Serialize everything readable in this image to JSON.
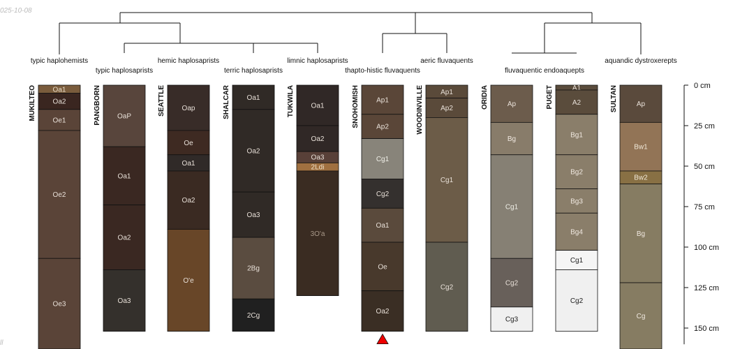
{
  "corner_text": {
    "top_left": "025-10-08",
    "bottom_left": "ll"
  },
  "depth_axis": {
    "unit": "cm",
    "max_depth": 150,
    "ticks": [
      {
        "depth": 0,
        "label": "0 cm"
      },
      {
        "depth": 25,
        "label": "25 cm"
      },
      {
        "depth": 50,
        "label": "50 cm"
      },
      {
        "depth": 75,
        "label": "75 cm"
      },
      {
        "depth": 100,
        "label": "100 cm"
      },
      {
        "depth": 125,
        "label": "125 cm"
      },
      {
        "depth": 150,
        "label": "150 cm"
      }
    ]
  },
  "subgroup_labels": [
    "typic haplohemists",
    "typic haplosaprists",
    "hemic haplosaprists",
    "terric haplosaprists",
    "limnic haplosaprists",
    "thapto-histic fluvaquents",
    "aeric fluvaquents",
    "fluvaquentic endoaquepts",
    "aquandic dystroxerepts"
  ],
  "profiles": [
    {
      "name": "MUKILTEO",
      "horizons": [
        {
          "name": "Oa1",
          "top": 0,
          "bottom": 5,
          "color": "#7a5c3c",
          "text": "#e8dcc8"
        },
        {
          "name": "Oa2",
          "top": 5,
          "bottom": 15,
          "color": "#3a2620",
          "text": "#e8e0d8"
        },
        {
          "name": "Oe1",
          "top": 15,
          "bottom": 28,
          "color": "#5a4438",
          "text": "#e8e0d8"
        },
        {
          "name": "Oe2",
          "top": 28,
          "bottom": 107,
          "color": "#5a4438",
          "text": "#e8e0d8"
        },
        {
          "name": "Oe3",
          "top": 107,
          "bottom": 165,
          "color": "#5a4438",
          "text": "#e8e0d8"
        }
      ]
    },
    {
      "name": "PANGBORN",
      "horizons": [
        {
          "name": "OaP",
          "top": 0,
          "bottom": 38,
          "color": "#58453c",
          "text": "#e8e0d8"
        },
        {
          "name": "Oa1",
          "top": 38,
          "bottom": 74,
          "color": "#3a2822",
          "text": "#e8e0d8"
        },
        {
          "name": "Oa2",
          "top": 74,
          "bottom": 114,
          "color": "#3a2822",
          "text": "#e8e0d8"
        },
        {
          "name": "Oa3",
          "top": 114,
          "bottom": 152,
          "color": "#34302c",
          "text": "#e8e0d8"
        }
      ]
    },
    {
      "name": "SEATTLE",
      "horizons": [
        {
          "name": "Oap",
          "top": 0,
          "bottom": 28,
          "color": "#382c28",
          "text": "#e8e0d8"
        },
        {
          "name": "Oe",
          "top": 28,
          "bottom": 43,
          "color": "#3e2a22",
          "text": "#e8e0d8"
        },
        {
          "name": "Oa1",
          "top": 43,
          "bottom": 53,
          "color": "#302a28",
          "text": "#e8e0d8"
        },
        {
          "name": "Oa2",
          "top": 53,
          "bottom": 89,
          "color": "#3a2a22",
          "text": "#e8e0d8"
        },
        {
          "name": "O'e",
          "top": 89,
          "bottom": 152,
          "color": "#684628",
          "text": "#e8e0d8"
        }
      ]
    },
    {
      "name": "SHALCAR",
      "horizons": [
        {
          "name": "Oa1",
          "top": 0,
          "bottom": 15,
          "color": "#302a26",
          "text": "#e8e0d8"
        },
        {
          "name": "Oa2",
          "top": 15,
          "bottom": 66,
          "color": "#302a26",
          "text": "#e8e0d8"
        },
        {
          "name": "Oa3",
          "top": 66,
          "bottom": 94,
          "color": "#302a26",
          "text": "#e8e0d8"
        },
        {
          "name": "2Bg",
          "top": 94,
          "bottom": 132,
          "color": "#5a4c40",
          "text": "#e8e0d8"
        },
        {
          "name": "2Cg",
          "top": 132,
          "bottom": 152,
          "color": "#202020",
          "text": "#e8e0d8"
        }
      ]
    },
    {
      "name": "TUKWILA",
      "horizons": [
        {
          "name": "Oa1",
          "top": 0,
          "bottom": 25,
          "color": "#302826",
          "text": "#e8e0d8"
        },
        {
          "name": "Oa2",
          "top": 25,
          "bottom": 41,
          "color": "#302826",
          "text": "#e8e0d8"
        },
        {
          "name": "Oa3",
          "top": 41,
          "bottom": 48,
          "color": "#584038",
          "text": "#e8e0d8"
        },
        {
          "name": "2Ldi",
          "top": 48,
          "bottom": 53,
          "color": "#a07040",
          "text": "#f0e0c8"
        },
        {
          "name": "3O'a",
          "top": 53,
          "bottom": 130,
          "color": "#3a2c22",
          "text": "#a89888"
        }
      ]
    },
    {
      "name": "SNOHOMISH",
      "marker": "triangle",
      "horizons": [
        {
          "name": "Ap1",
          "top": 0,
          "bottom": 18,
          "color": "#5a4638",
          "text": "#e8e0d8"
        },
        {
          "name": "Ap2",
          "top": 18,
          "bottom": 33,
          "color": "#5a4638",
          "text": "#e8e0d8"
        },
        {
          "name": "Cg1",
          "top": 33,
          "bottom": 58,
          "color": "#88847a",
          "text": "#f0f0e8"
        },
        {
          "name": "Cg2",
          "top": 58,
          "bottom": 76,
          "color": "#34302e",
          "text": "#e8e0d8"
        },
        {
          "name": "Oa1",
          "top": 76,
          "bottom": 97,
          "color": "#5a4a3c",
          "text": "#e8e0d8"
        },
        {
          "name": "Oe",
          "top": 97,
          "bottom": 127,
          "color": "#48392c",
          "text": "#e8e0d8"
        },
        {
          "name": "Oa2",
          "top": 127,
          "bottom": 152,
          "color": "#3a2e24",
          "text": "#e8e0d8"
        }
      ]
    },
    {
      "name": "WOODINVILLE",
      "horizons": [
        {
          "name": "Ap1",
          "top": 0,
          "bottom": 8,
          "color": "#5a4a3a",
          "text": "#e8e0d8"
        },
        {
          "name": "Ap2",
          "top": 8,
          "bottom": 20,
          "color": "#5a4a3a",
          "text": "#e8e0d8"
        },
        {
          "name": "Cg1",
          "top": 20,
          "bottom": 97,
          "color": "#6c5c48",
          "text": "#e8e0d8"
        },
        {
          "name": "Cg2",
          "top": 97,
          "bottom": 152,
          "color": "#605c50",
          "text": "#e8e0d8"
        }
      ]
    },
    {
      "name": "ORIDIA",
      "horizons": [
        {
          "name": "Ap",
          "top": 0,
          "bottom": 23,
          "color": "#6c5c4c",
          "text": "#e8e0d8"
        },
        {
          "name": "Bg",
          "top": 23,
          "bottom": 43,
          "color": "#887c6a",
          "text": "#f0e8e0"
        },
        {
          "name": "Cg1",
          "top": 43,
          "bottom": 107,
          "color": "#868074",
          "text": "#f0f0e8"
        },
        {
          "name": "Cg2",
          "top": 107,
          "bottom": 137,
          "color": "#68605a",
          "text": "#e8e0d8"
        },
        {
          "name": "Cg3",
          "top": 137,
          "bottom": 152,
          "color": "#f0f0f0",
          "text": "#222222"
        }
      ]
    },
    {
      "name": "PUGET",
      "horizons": [
        {
          "name": "A1",
          "top": 0,
          "bottom": 3,
          "color": "#5a4c3c",
          "text": "#e8e0d8"
        },
        {
          "name": "A2",
          "top": 3,
          "bottom": 18,
          "color": "#5a4c3c",
          "text": "#e8e0d8"
        },
        {
          "name": "Bg1",
          "top": 18,
          "bottom": 43,
          "color": "#8a7e6a",
          "text": "#f0e8e0"
        },
        {
          "name": "Bg2",
          "top": 43,
          "bottom": 64,
          "color": "#8a7e6a",
          "text": "#f0e8e0"
        },
        {
          "name": "Bg3",
          "top": 64,
          "bottom": 79,
          "color": "#8a7e6a",
          "text": "#f0e8e0"
        },
        {
          "name": "Bg4",
          "top": 79,
          "bottom": 102,
          "color": "#8a7e6a",
          "text": "#f0e8e0"
        },
        {
          "name": "Cg1",
          "top": 102,
          "bottom": 114,
          "color": "#f5f5f5",
          "text": "#222222"
        },
        {
          "name": "Cg2",
          "top": 114,
          "bottom": 152,
          "color": "#f0f0f0",
          "text": "#222222"
        }
      ]
    },
    {
      "name": "SULTAN",
      "horizons": [
        {
          "name": "Ap",
          "top": 0,
          "bottom": 23,
          "color": "#5a4a3c",
          "text": "#e8e0d8"
        },
        {
          "name": "Bw1",
          "top": 23,
          "bottom": 53,
          "color": "#927456",
          "text": "#f0e8d8"
        },
        {
          "name": "Bw2",
          "top": 53,
          "bottom": 61,
          "color": "#887044",
          "text": "#f0e8d8"
        },
        {
          "name": "Bg",
          "top": 61,
          "bottom": 122,
          "color": "#867c62",
          "text": "#f0e8e0"
        },
        {
          "name": "Cg",
          "top": 122,
          "bottom": 165,
          "color": "#867c62",
          "text": "#f0e8e0"
        }
      ]
    }
  ]
}
